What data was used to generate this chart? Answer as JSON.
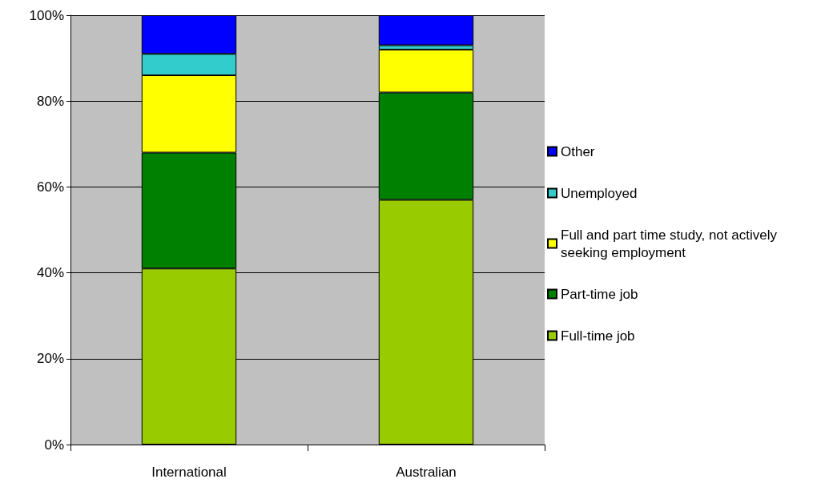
{
  "chart_data": {
    "type": "bar",
    "stacked": true,
    "categories": [
      "International",
      "Australian"
    ],
    "series": [
      {
        "name": "Full-time job",
        "color": "#99cc00",
        "values": [
          41,
          57
        ]
      },
      {
        "name": "Part-time job",
        "color": "#008000",
        "values": [
          27,
          25
        ]
      },
      {
        "name": "Full and part time study, not actively seeking employment",
        "color": "#ffff00",
        "values": [
          18,
          10
        ]
      },
      {
        "name": "Unemployed",
        "color": "#33cccc",
        "values": [
          5,
          1
        ]
      },
      {
        "name": "Other",
        "color": "#0000ff",
        "values": [
          9,
          7
        ]
      }
    ],
    "ylim": [
      0,
      100
    ],
    "yticks": [
      {
        "value": 0,
        "label": "0%"
      },
      {
        "value": 20,
        "label": "20%"
      },
      {
        "value": 40,
        "label": "40%"
      },
      {
        "value": 60,
        "label": "60%"
      },
      {
        "value": 80,
        "label": "80%"
      },
      {
        "value": 100,
        "label": "100%"
      }
    ],
    "grid": "y",
    "legend": "right"
  }
}
